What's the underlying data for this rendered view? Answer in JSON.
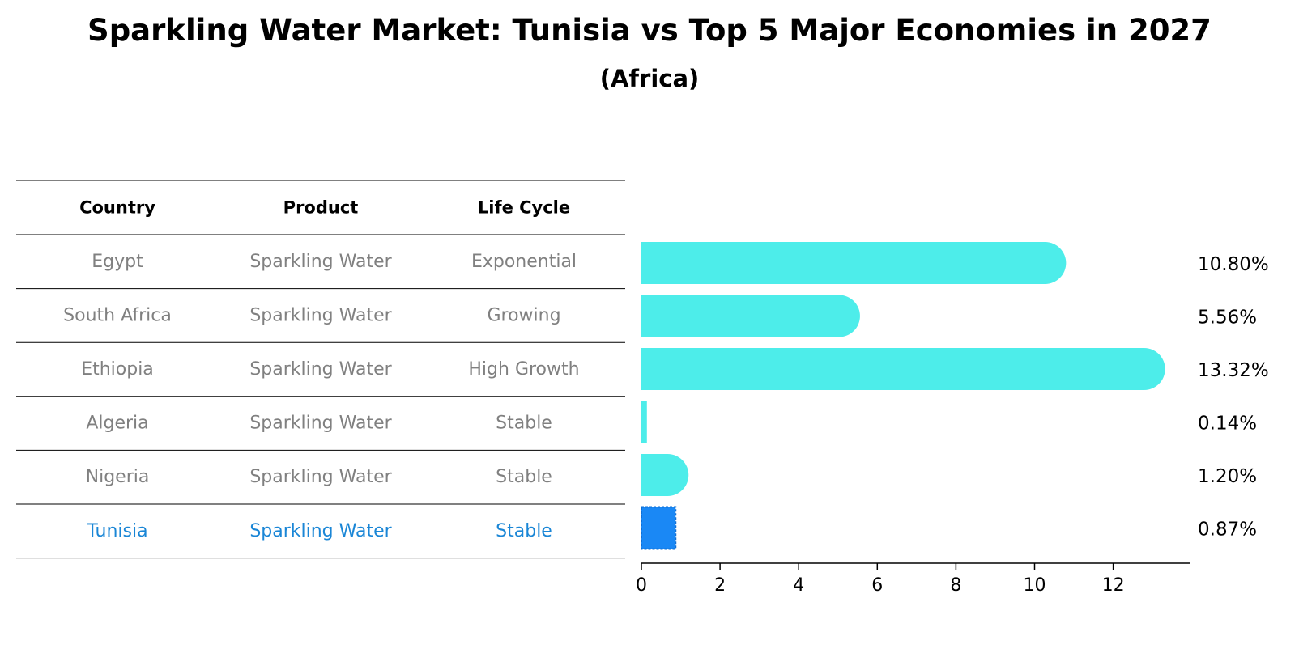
{
  "title": "Sparkling Water Market: Tunisia vs Top 5 Major Economies in 2027",
  "subtitle": "(Africa)",
  "table": {
    "headers": [
      "Country",
      "Product",
      "Life Cycle"
    ],
    "rows": [
      {
        "country": "Egypt",
        "product": "Sparkling Water",
        "life_cycle": "Exponential",
        "highlight": false
      },
      {
        "country": "South Africa",
        "product": "Sparkling Water",
        "life_cycle": "Growing",
        "highlight": false
      },
      {
        "country": "Ethiopia",
        "product": "Sparkling Water",
        "life_cycle": "High Growth",
        "highlight": false
      },
      {
        "country": "Algeria",
        "product": "Sparkling Water",
        "life_cycle": "Stable",
        "highlight": false
      },
      {
        "country": "Nigeria",
        "product": "Sparkling Water",
        "life_cycle": "Stable",
        "highlight": false
      },
      {
        "country": "Tunisia",
        "product": "Sparkling Water",
        "life_cycle": "Stable",
        "highlight": true
      }
    ]
  },
  "chart_data": {
    "type": "bar",
    "orientation": "horizontal",
    "categories": [
      "Egypt",
      "South Africa",
      "Ethiopia",
      "Algeria",
      "Nigeria",
      "Tunisia"
    ],
    "values": [
      10.8,
      5.56,
      13.32,
      0.14,
      1.2,
      0.87
    ],
    "labels": [
      "10.80%",
      "5.56%",
      "13.32%",
      "0.14%",
      "1.20%",
      "0.87%"
    ],
    "xticks": [
      0,
      2,
      4,
      6,
      8,
      10,
      12
    ],
    "xlim": [
      0,
      14.0
    ],
    "grid": false
  },
  "colors": {
    "bar": "#4dedea",
    "highlight_bar": "#1a88f5",
    "row_text": "#808080",
    "highlight_text": "#1a86d6",
    "header_text": "#000000"
  }
}
